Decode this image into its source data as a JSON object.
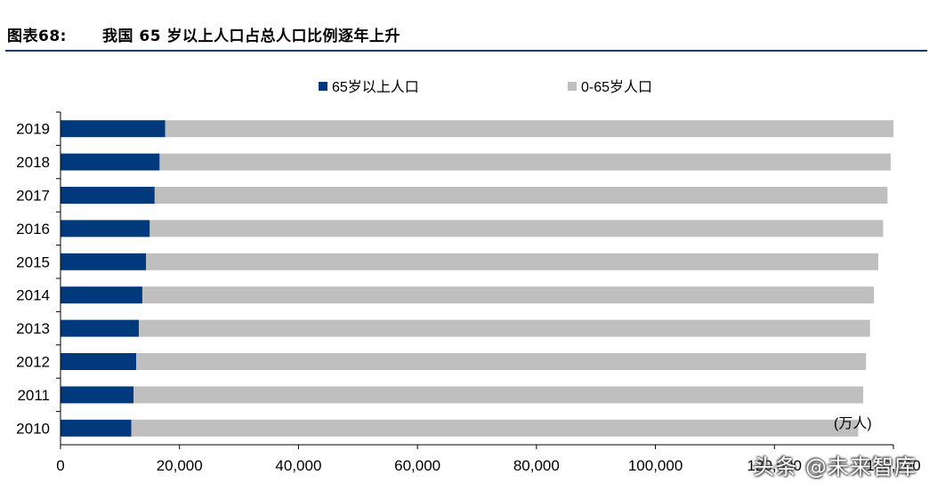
{
  "figure": {
    "label": "图表68:",
    "title": "我国 65 岁以上人口占总人口比例逐年上升",
    "watermark": "头条 @未来智库"
  },
  "colors": {
    "senior": "#003a7d",
    "other": "#bfbfbf",
    "rule": "#1f3a68"
  },
  "chart_data": {
    "type": "bar",
    "orientation": "horizontal",
    "stacked": true,
    "categories": [
      "2019",
      "2018",
      "2017",
      "2016",
      "2015",
      "2014",
      "2013",
      "2012",
      "2011",
      "2010"
    ],
    "series": [
      {
        "name": "65岁以上人口",
        "values": [
          17603,
          16658,
          15831,
          15003,
          14386,
          13755,
          13161,
          12714,
          12288,
          11894
        ]
      },
      {
        "name": "0-65岁人口",
        "values": [
          122402,
          122880,
          123177,
          123268,
          123076,
          122977,
          122911,
          122690,
          122628,
          122197
        ]
      }
    ],
    "unit_label": "(万人)",
    "xlim": [
      0,
      140000
    ],
    "xticks": [
      0,
      20000,
      40000,
      60000,
      80000,
      100000,
      120000,
      140000
    ],
    "xtick_labels": [
      "0",
      "20,000",
      "40,000",
      "60,000",
      "80,000",
      "100,000",
      "120,000",
      "140,000"
    ],
    "legend_position": "top",
    "grid": false
  }
}
